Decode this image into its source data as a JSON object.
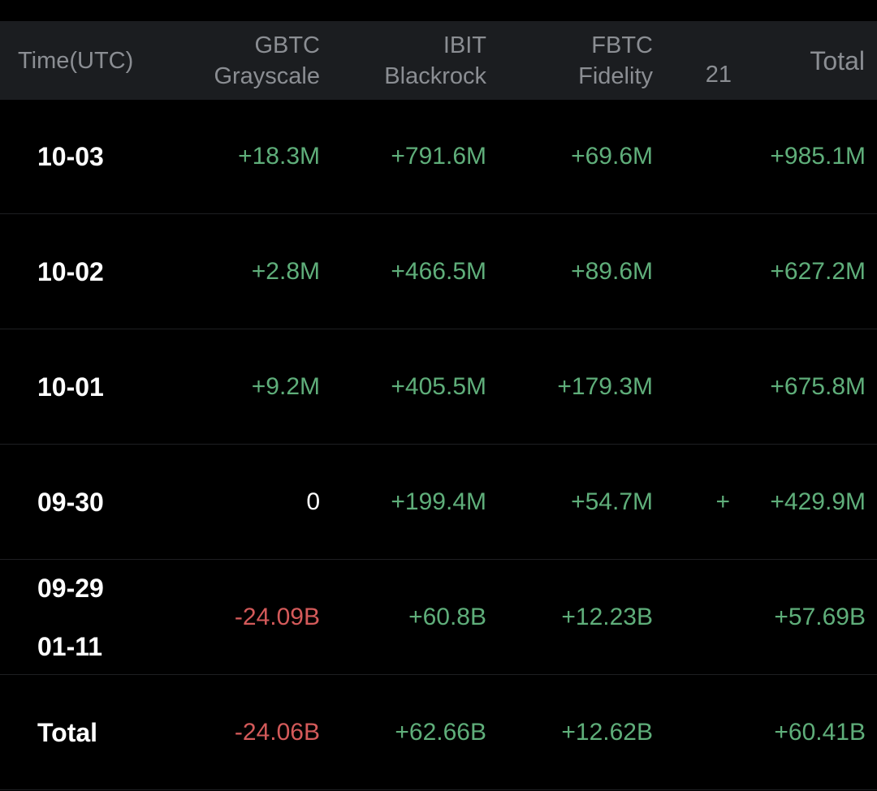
{
  "colors": {
    "positive": "#5fae7a",
    "negative": "#d45a5a",
    "header_bg": "#1b1d20",
    "background": "#000000"
  },
  "header": {
    "time": "Time(UTC)",
    "gbtc_ticker": "GBTC",
    "gbtc_issuer": "Grayscale",
    "ibit_ticker": "IBIT",
    "ibit_issuer": "Blackrock",
    "fbtc_ticker": "FBTC",
    "fbtc_issuer": "Fidelity",
    "extra": "21",
    "total": "Total"
  },
  "rows": [
    {
      "date": "10-03",
      "date2": "",
      "gbtc": "+18.3M",
      "ibit": "+791.6M",
      "fbtc": "+69.6M",
      "extra": "",
      "total": "+985.1M"
    },
    {
      "date": "10-02",
      "date2": "",
      "gbtc": "+2.8M",
      "ibit": "+466.5M",
      "fbtc": "+89.6M",
      "extra": "",
      "total": "+627.2M"
    },
    {
      "date": "10-01",
      "date2": "",
      "gbtc": "+9.2M",
      "ibit": "+405.5M",
      "fbtc": "+179.3M",
      "extra": "",
      "total": "+675.8M"
    },
    {
      "date": "09-30",
      "date2": "",
      "gbtc": "0",
      "ibit": "+199.4M",
      "fbtc": "+54.7M",
      "extra": "+",
      "total": "+429.9M"
    },
    {
      "date": "09-29",
      "date2": "01-11",
      "gbtc": "-24.09B",
      "ibit": "+60.8B",
      "fbtc": "+12.23B",
      "extra": "",
      "total": "+57.69B"
    },
    {
      "date": "Total",
      "date2": "",
      "gbtc": "-24.06B",
      "ibit": "+62.66B",
      "fbtc": "+12.62B",
      "extra": "",
      "total": "+60.41B"
    }
  ]
}
